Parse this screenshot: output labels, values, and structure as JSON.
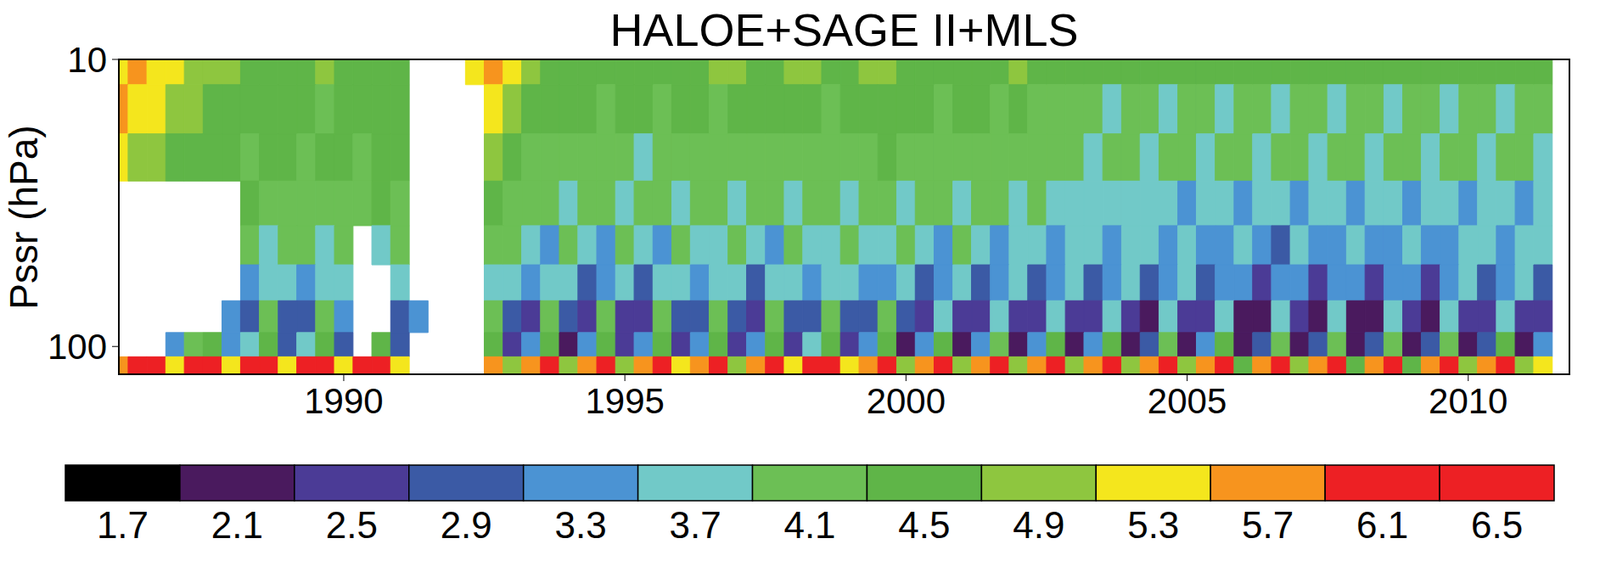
{
  "chart_data": {
    "type": "heatmap",
    "title": "HALOE+SAGE II+MLS",
    "y_label": "Pssr (hPa)",
    "log": "y",
    "x": [
      1986,
      1986.33,
      1986.67,
      1987,
      1987.33,
      1987.67,
      1988,
      1988.33,
      1988.67,
      1989,
      1989.33,
      1989.67,
      1990,
      1990.33,
      1990.67,
      1991,
      1991.33,
      1991.67,
      1992,
      1992.33,
      1992.67,
      1993,
      1993.33,
      1993.67,
      1994,
      1994.33,
      1994.67,
      1995,
      1995.33,
      1995.67,
      1996,
      1996.33,
      1996.67,
      1997,
      1997.33,
      1997.67,
      1998,
      1998.33,
      1998.67,
      1999,
      1999.33,
      1999.67,
      2000,
      2000.33,
      2000.67,
      2001,
      2001.33,
      2001.67,
      2002,
      2002.33,
      2002.67,
      2003,
      2003.33,
      2003.67,
      2004,
      2004.33,
      2004.67,
      2005,
      2005.33,
      2005.67,
      2006,
      2006.33,
      2006.67,
      2007,
      2007.33,
      2007.67,
      2008,
      2008.33,
      2008.67,
      2009,
      2009.33,
      2009.67,
      2010,
      2010.33,
      2010.67,
      2011,
      2011.33
    ],
    "y": [
      10,
      15,
      22,
      32,
      45,
      60,
      80,
      100,
      118
    ],
    "values": [
      [
        5.3,
        5.7,
        5.3,
        5.3,
        4.9,
        4.9,
        4.9,
        4.7,
        4.7,
        4.7,
        4.5,
        4.9,
        4.7,
        4.5,
        4.5,
        4.7,
        null,
        null,
        null,
        5.3,
        5.7,
        5.3,
        4.9,
        4.7,
        4.7,
        4.7,
        4.7,
        4.7,
        4.7,
        4.7,
        4.7,
        4.7,
        4.9,
        4.9,
        4.7,
        4.7,
        4.9,
        4.9,
        4.7,
        4.7,
        4.9,
        4.9,
        4.7,
        4.7,
        4.7,
        4.7,
        4.5,
        4.7,
        4.9,
        4.7,
        4.7,
        4.7,
        4.7,
        4.7,
        4.7,
        4.7,
        4.7,
        4.7,
        4.7,
        4.7,
        4.7,
        4.5,
        4.7,
        4.7,
        4.7,
        4.5,
        4.7,
        4.7,
        4.7,
        4.7,
        4.7,
        4.7,
        4.7,
        4.7,
        4.5,
        4.7,
        4.7
      ],
      [
        5.7,
        5.3,
        5.3,
        4.9,
        4.9,
        4.7,
        4.7,
        4.7,
        4.5,
        4.5,
        4.5,
        4.3,
        4.5,
        4.7,
        4.5,
        4.5,
        null,
        null,
        null,
        null,
        5.3,
        4.9,
        4.7,
        4.5,
        4.5,
        4.5,
        4.3,
        4.5,
        4.5,
        4.3,
        4.5,
        4.5,
        4.3,
        4.5,
        4.5,
        4.5,
        4.5,
        4.5,
        4.3,
        4.5,
        4.5,
        4.5,
        4.5,
        4.5,
        4.3,
        4.5,
        4.5,
        4.3,
        4.5,
        4.3,
        4.1,
        4.3,
        4.3,
        3.9,
        4.3,
        4.3,
        3.9,
        4.3,
        4.3,
        3.9,
        4.3,
        4.3,
        3.9,
        4.3,
        4.3,
        3.9,
        4.3,
        4.1,
        3.9,
        4.3,
        4.3,
        3.9,
        4.3,
        4.3,
        3.9,
        4.3,
        4.3
      ],
      [
        5.3,
        4.9,
        4.9,
        4.7,
        4.5,
        4.5,
        4.5,
        4.3,
        4.5,
        4.5,
        4.3,
        4.5,
        4.5,
        4.3,
        4.5,
        4.5,
        null,
        null,
        null,
        null,
        4.9,
        4.5,
        4.3,
        4.3,
        4.3,
        4.1,
        4.3,
        4.3,
        3.9,
        4.3,
        4.3,
        4.1,
        4.3,
        4.3,
        4.1,
        4.3,
        4.3,
        4.1,
        4.3,
        4.3,
        4.1,
        4.5,
        4.3,
        4.1,
        4.3,
        4.3,
        4.1,
        4.1,
        4.3,
        4.1,
        4.3,
        4.1,
        3.9,
        4.1,
        4.1,
        3.8,
        4.1,
        4.1,
        3.8,
        4.1,
        4.1,
        3.8,
        4.1,
        4.1,
        3.8,
        4.1,
        4.1,
        3.8,
        4.1,
        4.1,
        3.8,
        4.1,
        4.1,
        3.8,
        4.1,
        4.1,
        3.9
      ],
      [
        null,
        null,
        null,
        null,
        null,
        null,
        null,
        4.5,
        4.3,
        4.1,
        4.3,
        4.1,
        4.1,
        4.3,
        4.5,
        4.3,
        null,
        null,
        null,
        null,
        4.5,
        4.3,
        4.1,
        4.1,
        3.9,
        4.1,
        4.1,
        3.8,
        4.1,
        4.1,
        3.9,
        4.1,
        4.1,
        3.8,
        4.1,
        4.1,
        3.9,
        4.1,
        4.1,
        3.9,
        4.1,
        4.1,
        3.9,
        4.1,
        4.1,
        3.9,
        4.1,
        4.1,
        3.8,
        4.1,
        3.9,
        3.8,
        3.9,
        3.9,
        3.7,
        3.9,
        3.9,
        3.6,
        3.9,
        3.8,
        3.5,
        3.9,
        3.8,
        3.5,
        3.9,
        3.8,
        3.5,
        3.9,
        3.8,
        3.5,
        3.9,
        3.8,
        3.6,
        3.9,
        3.8,
        3.6,
        3.9
      ],
      [
        null,
        null,
        null,
        null,
        null,
        null,
        null,
        4.1,
        3.9,
        4.1,
        4.1,
        3.8,
        4.1,
        null,
        3.9,
        4.1,
        null,
        null,
        null,
        null,
        4.1,
        4.1,
        3.9,
        3.6,
        4.1,
        3.9,
        3.6,
        4.1,
        3.9,
        3.5,
        4.1,
        3.9,
        3.7,
        4.1,
        3.9,
        3.6,
        4.1,
        3.9,
        3.7,
        4.1,
        3.9,
        3.7,
        4.1,
        3.8,
        3.6,
        4.1,
        3.8,
        3.5,
        3.9,
        3.8,
        3.5,
        3.9,
        3.7,
        3.4,
        3.9,
        3.7,
        3.3,
        3.9,
        3.6,
        3.3,
        3.9,
        3.6,
        3.2,
        3.9,
        3.6,
        3.3,
        3.9,
        3.6,
        3.3,
        3.9,
        3.6,
        3.3,
        3.9,
        3.7,
        3.3,
        3.9,
        3.7
      ],
      [
        null,
        null,
        null,
        null,
        null,
        null,
        null,
        3.5,
        3.9,
        3.9,
        3.4,
        3.8,
        3.9,
        null,
        null,
        3.9,
        null,
        null,
        null,
        null,
        3.8,
        3.8,
        3.3,
        3.7,
        3.9,
        3.2,
        3.6,
        3.9,
        3.2,
        3.7,
        3.9,
        3.3,
        3.8,
        3.9,
        3.2,
        3.7,
        3.9,
        3.4,
        3.8,
        3.9,
        3.3,
        3.6,
        3.9,
        3.2,
        3.6,
        3.8,
        3.1,
        3.5,
        3.7,
        3.0,
        3.5,
        3.7,
        3.0,
        3.4,
        3.7,
        2.9,
        3.4,
        3.7,
        2.9,
        3.4,
        3.6,
        2.7,
        3.3,
        3.6,
        2.8,
        3.4,
        3.6,
        2.7,
        3.3,
        3.6,
        2.8,
        3.4,
        3.7,
        2.9,
        3.4,
        3.7,
        3.0
      ],
      [
        null,
        null,
        null,
        null,
        null,
        null,
        3.4,
        3.1,
        4.1,
        3.1,
        3.0,
        4.1,
        3.3,
        null,
        null,
        3.2,
        3.3,
        null,
        null,
        null,
        4.1,
        3.0,
        2.8,
        4.1,
        2.9,
        2.8,
        4.1,
        2.8,
        2.7,
        4.1,
        3.0,
        3.0,
        4.1,
        2.9,
        2.8,
        4.1,
        3.1,
        3.0,
        4.1,
        3.0,
        2.9,
        4.1,
        2.9,
        2.8,
        3.9,
        2.7,
        2.6,
        3.9,
        2.6,
        2.5,
        3.9,
        2.7,
        2.6,
        3.9,
        2.6,
        2.4,
        3.8,
        2.6,
        2.5,
        3.8,
        2.4,
        2.3,
        3.7,
        2.6,
        2.4,
        3.8,
        2.4,
        2.4,
        3.7,
        2.5,
        2.4,
        3.8,
        2.6,
        2.5,
        3.8,
        2.6,
        2.6
      ],
      [
        null,
        null,
        null,
        3.5,
        4.1,
        4.5,
        3.3,
        3.9,
        4.5,
        3.1,
        3.8,
        4.5,
        3.1,
        null,
        4.5,
        3.0,
        null,
        null,
        null,
        null,
        4.5,
        2.5,
        3.5,
        4.5,
        2.4,
        3.5,
        4.5,
        2.5,
        3.5,
        4.5,
        2.7,
        3.6,
        4.6,
        2.5,
        3.5,
        4.6,
        2.8,
        3.7,
        4.8,
        2.5,
        3.6,
        4.6,
        2.4,
        3.5,
        4.5,
        2.3,
        3.3,
        4.3,
        2.3,
        3.4,
        4.5,
        2.4,
        3.4,
        4.5,
        2.2,
        3.2,
        4.3,
        2.4,
        3.3,
        4.5,
        2.1,
        3.0,
        4.3,
        2.2,
        3.2,
        4.4,
        2.2,
        3.1,
        4.3,
        2.3,
        3.2,
        4.4,
        2.2,
        3.2,
        4.5,
        2.4,
        3.3
      ],
      [
        5.7,
        6.3,
        6.5,
        5.3,
        6.3,
        6.5,
        5.3,
        6.1,
        6.5,
        5.3,
        6.1,
        6.3,
        5.3,
        6.1,
        6.1,
        5.3,
        null,
        null,
        null,
        null,
        5.7,
        4.9,
        5.7,
        6.1,
        4.9,
        5.7,
        6.1,
        4.9,
        5.7,
        6.1,
        5.3,
        5.7,
        6.3,
        4.9,
        5.7,
        6.1,
        5.3,
        6.1,
        6.5,
        5.3,
        5.7,
        6.1,
        4.9,
        5.7,
        6.3,
        4.9,
        5.7,
        6.1,
        4.9,
        5.7,
        6.1,
        4.9,
        5.7,
        6.1,
        4.9,
        5.7,
        6.1,
        4.9,
        5.7,
        6.3,
        4.5,
        5.7,
        6.1,
        4.9,
        5.7,
        6.3,
        4.5,
        5.7,
        6.1,
        4.5,
        5.7,
        6.3,
        4.9,
        5.7,
        6.1,
        4.9,
        5.3
      ]
    ],
    "xlim": [
      1986,
      2011.8
    ],
    "ylim": [
      10,
      125
    ],
    "xticks": [
      1990,
      1995,
      2000,
      2005,
      2010
    ],
    "yticks": [
      10,
      100
    ],
    "colorbar": {
      "levels": [
        1.7,
        2.1,
        2.5,
        2.9,
        3.3,
        3.7,
        4.1,
        4.5,
        4.9,
        5.3,
        5.7,
        6.1,
        6.5
      ],
      "colors": [
        "#000000",
        "#4a1a5e",
        "#4b3b96",
        "#3b5aa5",
        "#4b93d3",
        "#71c9c8",
        "#6cbf55",
        "#5fb548",
        "#8ec63f",
        "#f4e61d",
        "#f7941e",
        "#ed2024",
        "#ed2024"
      ]
    }
  }
}
